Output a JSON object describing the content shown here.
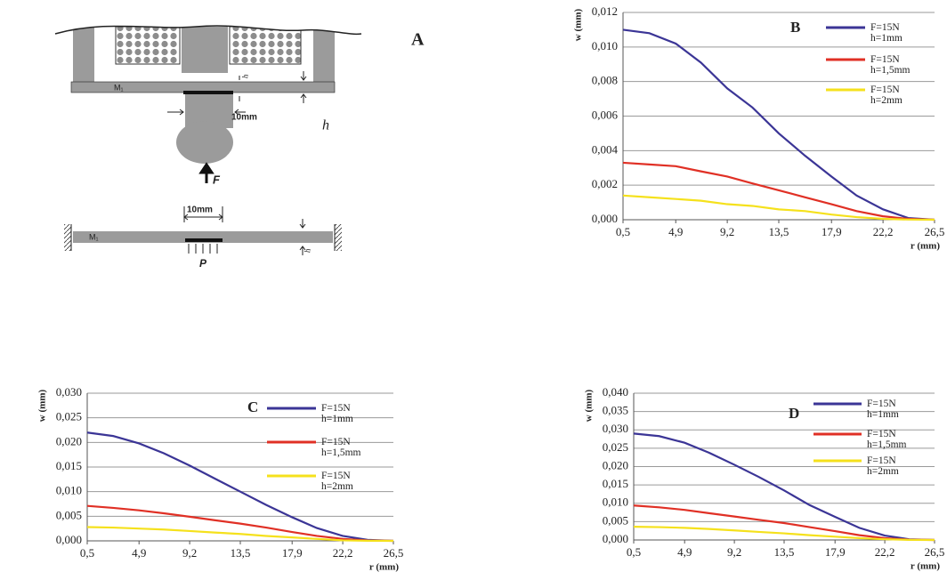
{
  "diagram": {
    "label": "A",
    "plate_label": "M₁",
    "width_label": "10mm",
    "thickness_label": "h",
    "force_label": "F",
    "pressure_label": "P"
  },
  "chart_data": [
    {
      "type": "line",
      "label": "B",
      "ylabel": "w (mm)",
      "xlabel": "r (mm)",
      "x": [
        0.5,
        2.7,
        4.9,
        7.0,
        9.2,
        11.3,
        13.5,
        15.7,
        17.9,
        20.0,
        22.2,
        24.3,
        26.5
      ],
      "xlim": [
        0.5,
        26.5
      ],
      "xticks": [
        {
          "value": 0.5,
          "label": "0,5"
        },
        {
          "value": 4.9,
          "label": "4,9"
        },
        {
          "value": 9.2,
          "label": "9,2"
        },
        {
          "value": 13.5,
          "label": "13,5"
        },
        {
          "value": 17.9,
          "label": "17,9"
        },
        {
          "value": 22.2,
          "label": "22,2"
        },
        {
          "value": 26.5,
          "label": "26,5"
        }
      ],
      "ylim": [
        0,
        0.012
      ],
      "yticks": [
        {
          "value": 0,
          "label": "0,000"
        },
        {
          "value": 0.002,
          "label": "0,002"
        },
        {
          "value": 0.004,
          "label": "0,004"
        },
        {
          "value": 0.006,
          "label": "0,006"
        },
        {
          "value": 0.008,
          "label": "0,008"
        },
        {
          "value": 0.01,
          "label": "0,010"
        },
        {
          "value": 0.012,
          "label": "0,012"
        }
      ],
      "grid": true,
      "series": [
        {
          "name": "F=15N\nh=1mm",
          "color": "#3b3596",
          "values": [
            0.011,
            0.0108,
            0.0102,
            0.0091,
            0.0076,
            0.0065,
            0.005,
            0.0037,
            0.0025,
            0.0014,
            0.0006,
            0.0001,
            0
          ]
        },
        {
          "name": "F=15N\nh=1,5mm",
          "color": "#e03025",
          "values": [
            0.0033,
            0.0032,
            0.0031,
            0.0028,
            0.0025,
            0.0021,
            0.0017,
            0.0013,
            0.0009,
            0.0005,
            0.0002,
            5e-05,
            0
          ]
        },
        {
          "name": "F=15N\nh=2mm",
          "color": "#f5e11c",
          "values": [
            0.0014,
            0.0013,
            0.0012,
            0.0011,
            0.0009,
            0.0008,
            0.0006,
            0.0005,
            0.0003,
            0.00015,
            5e-05,
            1e-05,
            0
          ]
        }
      ]
    },
    {
      "type": "line",
      "label": "C",
      "ylabel": "w (mm)",
      "xlabel": "r (mm)",
      "x": [
        0.5,
        2.7,
        4.9,
        7.0,
        9.2,
        11.3,
        13.5,
        15.7,
        17.9,
        20.0,
        22.2,
        24.3,
        26.5
      ],
      "xlim": [
        0.5,
        26.5
      ],
      "xticks": [
        {
          "value": 0.5,
          "label": "0,5"
        },
        {
          "value": 4.9,
          "label": "4,9"
        },
        {
          "value": 9.2,
          "label": "9,2"
        },
        {
          "value": 13.5,
          "label": "13,5"
        },
        {
          "value": 17.9,
          "label": "17,9"
        },
        {
          "value": 22.2,
          "label": "22,2"
        },
        {
          "value": 26.5,
          "label": "26,5"
        }
      ],
      "ylim": [
        0,
        0.03
      ],
      "yticks": [
        {
          "value": 0,
          "label": "0,000"
        },
        {
          "value": 0.005,
          "label": "0,005"
        },
        {
          "value": 0.01,
          "label": "0,010"
        },
        {
          "value": 0.015,
          "label": "0,015"
        },
        {
          "value": 0.02,
          "label": "0,020"
        },
        {
          "value": 0.025,
          "label": "0,025"
        },
        {
          "value": 0.03,
          "label": "0,030"
        }
      ],
      "grid": true,
      "series": [
        {
          "name": "F=15N\nh=1mm",
          "color": "#3b3596",
          "values": [
            0.022,
            0.0213,
            0.0198,
            0.0178,
            0.0153,
            0.0127,
            0.01,
            0.0073,
            0.0048,
            0.0026,
            0.001,
            0.0002,
            0
          ]
        },
        {
          "name": "F=15N\nh=1,5mm",
          "color": "#e03025",
          "values": [
            0.0071,
            0.0067,
            0.0062,
            0.0056,
            0.0049,
            0.0042,
            0.0035,
            0.0027,
            0.0018,
            0.001,
            0.0004,
            0.0001,
            0
          ]
        },
        {
          "name": "F=15N\nh=2mm",
          "color": "#f5e11c",
          "values": [
            0.0028,
            0.0027,
            0.0025,
            0.0023,
            0.002,
            0.0017,
            0.0014,
            0.001,
            0.0007,
            0.0004,
            0.0001,
            2e-05,
            0
          ]
        }
      ]
    },
    {
      "type": "line",
      "label": "D",
      "ylabel": "w (mm)",
      "xlabel": "r (mm)",
      "x": [
        0.5,
        2.7,
        4.9,
        7.0,
        9.2,
        11.3,
        13.5,
        15.7,
        17.9,
        20.0,
        22.2,
        24.3,
        26.5
      ],
      "xlim": [
        0.5,
        26.5
      ],
      "xticks": [
        {
          "value": 0.5,
          "label": "0,5"
        },
        {
          "value": 4.9,
          "label": "4,9"
        },
        {
          "value": 9.2,
          "label": "9,2"
        },
        {
          "value": 13.5,
          "label": "13,5"
        },
        {
          "value": 17.9,
          "label": "17,9"
        },
        {
          "value": 22.2,
          "label": "22,2"
        },
        {
          "value": 26.5,
          "label": "26,5"
        }
      ],
      "ylim": [
        0,
        0.04
      ],
      "yticks": [
        {
          "value": 0,
          "label": "0,000"
        },
        {
          "value": 0.005,
          "label": "0,005"
        },
        {
          "value": 0.01,
          "label": "0,010"
        },
        {
          "value": 0.015,
          "label": "0,015"
        },
        {
          "value": 0.02,
          "label": "0,020"
        },
        {
          "value": 0.025,
          "label": "0,025"
        },
        {
          "value": 0.03,
          "label": "0,030"
        },
        {
          "value": 0.035,
          "label": "0,035"
        },
        {
          "value": 0.04,
          "label": "0,040"
        }
      ],
      "grid": true,
      "series": [
        {
          "name": "F=15N\nh=1mm",
          "color": "#3b3596",
          "values": [
            0.029,
            0.0283,
            0.0265,
            0.0238,
            0.0205,
            0.0172,
            0.0135,
            0.0095,
            0.0063,
            0.0033,
            0.0012,
            0.0002,
            0
          ]
        },
        {
          "name": "F=15N\nh=1,5mm",
          "color": "#e03025",
          "values": [
            0.0094,
            0.0089,
            0.0082,
            0.0073,
            0.0064,
            0.0055,
            0.0046,
            0.0035,
            0.0024,
            0.0013,
            0.0005,
            0.0001,
            0
          ]
        },
        {
          "name": "F=15N\nh=2mm",
          "color": "#f5e11c",
          "values": [
            0.0036,
            0.0035,
            0.0033,
            0.003,
            0.0026,
            0.0022,
            0.0018,
            0.0013,
            0.0009,
            0.0005,
            0.0002,
            3e-05,
            0
          ]
        }
      ]
    }
  ]
}
